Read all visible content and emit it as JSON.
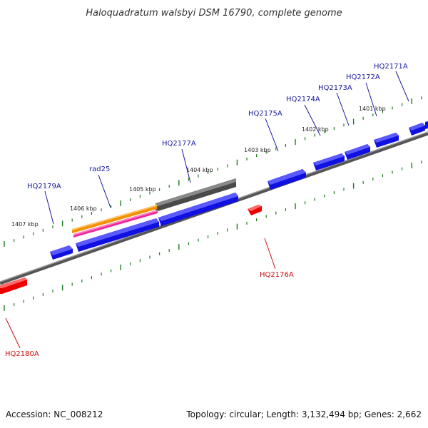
{
  "title": "Haloquadratum walsbyi DSM 16790, complete genome",
  "footer": {
    "accession": "Accession: NC_008212",
    "topology": "Topology: circular; Length: 3,132,494 bp; Genes: 2,662"
  },
  "colors": {
    "forward_gene": "#1010e0",
    "reverse_gene": "#ee0000",
    "rrna_grey": "#777777",
    "orange": "#f39000",
    "magenta": "#ee2a9a",
    "tick": "#1c7a1c",
    "label_forward": "#1a1aa0",
    "label_reverse": "#cc1111"
  },
  "ruler": [
    {
      "label": "1401 kbp"
    },
    {
      "label": "1402 kbp"
    },
    {
      "label": "1403 kbp"
    },
    {
      "label": "1404 kbp"
    },
    {
      "label": "1405 kbp"
    },
    {
      "label": "1406 kbp"
    },
    {
      "label": "1407 kbp"
    }
  ],
  "genes": [
    {
      "label": "HQ2171A",
      "strand": "forward",
      "icon": "gene-arrow"
    },
    {
      "label": "HQ2172A",
      "strand": "forward",
      "icon": "gene-arrow"
    },
    {
      "label": "HQ2173A",
      "strand": "forward",
      "icon": "gene-arrow"
    },
    {
      "label": "HQ2174A",
      "strand": "forward",
      "icon": "gene-arrow"
    },
    {
      "label": "HQ2175A",
      "strand": "forward",
      "icon": "gene-arrow"
    },
    {
      "label": "HQ2176A",
      "strand": "reverse",
      "icon": "gene-arrow"
    },
    {
      "label": "HQ2177A",
      "strand": "forward",
      "icon": "gene-arrow"
    },
    {
      "label": "rad25",
      "strand": "forward",
      "icon": "gene-arrow"
    },
    {
      "label": "HQ2179A",
      "strand": "forward",
      "icon": "gene-arrow"
    },
    {
      "label": "HQ2180A",
      "strand": "reverse",
      "icon": "gene-arrow"
    }
  ]
}
